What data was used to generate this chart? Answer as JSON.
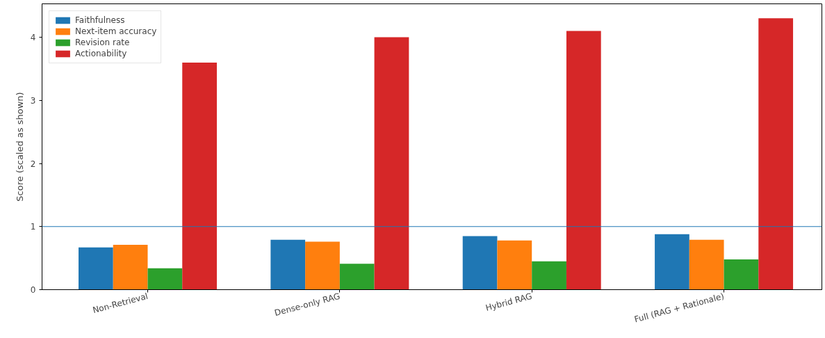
{
  "chart_data": {
    "type": "bar",
    "ylabel": "Score (scaled as shown)",
    "categories": [
      "Non-Retrieval",
      "Dense-only RAG",
      "Hybrid RAG",
      "Full (RAG + Rationale)"
    ],
    "series": [
      {
        "name": "Faithfulness",
        "color": "#1f77b4",
        "values": [
          0.67,
          0.79,
          0.85,
          0.88
        ]
      },
      {
        "name": "Next-item accuracy",
        "color": "#ff7f0e",
        "values": [
          0.71,
          0.76,
          0.78,
          0.79
        ]
      },
      {
        "name": "Revision rate",
        "color": "#2ca02c",
        "values": [
          0.34,
          0.41,
          0.45,
          0.48
        ]
      },
      {
        "name": "Actionability",
        "color": "#d62728",
        "values": [
          3.6,
          4.0,
          4.1,
          4.3
        ]
      }
    ],
    "ylim": [
      0,
      4.53
    ],
    "yticks": [
      0,
      1,
      2,
      3,
      4
    ],
    "ref_lines": [
      {
        "axis": "y",
        "value": 1,
        "color": "#1f77b4",
        "line_style": "solid"
      }
    ],
    "grid": false,
    "legend": "top left"
  }
}
